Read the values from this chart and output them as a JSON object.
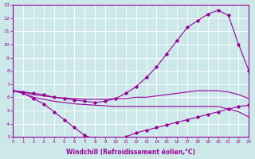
{
  "xlabel": "Windchill (Refroidissement éolien,°C)",
  "bg_color": "#cce8e8",
  "line_color": "#990099",
  "grid_color": "#ffffff",
  "xmin": 0,
  "xmax": 23,
  "ymin": 3,
  "ymax": 13,
  "curve_dip": {
    "x": [
      0,
      1,
      2,
      3,
      4,
      5,
      6,
      7,
      8,
      9,
      10,
      11,
      12,
      13,
      14,
      15,
      16,
      17,
      18,
      19,
      20,
      21,
      22,
      23
    ],
    "y": [
      6.5,
      6.3,
      5.9,
      5.5,
      4.9,
      4.3,
      3.7,
      3.1,
      2.85,
      2.75,
      2.75,
      3.0,
      3.3,
      3.5,
      3.7,
      3.9,
      4.1,
      4.3,
      4.5,
      4.7,
      4.9,
      5.1,
      5.3,
      5.4
    ],
    "marker": true
  },
  "curve_rise": {
    "x": [
      0,
      1,
      2,
      3,
      4,
      5,
      6,
      7,
      8,
      9,
      10,
      11,
      12,
      13,
      14,
      15,
      16,
      17,
      18,
      19,
      20,
      21,
      22,
      23
    ],
    "y": [
      6.5,
      6.4,
      6.3,
      6.2,
      6.0,
      5.9,
      5.8,
      5.7,
      5.6,
      5.7,
      5.9,
      6.3,
      6.8,
      7.5,
      8.3,
      9.3,
      10.3,
      11.3,
      11.8,
      12.3,
      12.6,
      12.2,
      10.0,
      8.0
    ],
    "marker": true
  },
  "flat_mid": {
    "x": [
      0,
      1,
      2,
      3,
      4,
      5,
      6,
      7,
      8,
      9,
      10,
      11,
      12,
      13,
      14,
      15,
      16,
      17,
      18,
      19,
      20,
      21,
      22,
      23
    ],
    "y": [
      6.5,
      6.4,
      6.2,
      6.1,
      6.0,
      5.95,
      5.9,
      5.85,
      5.85,
      5.85,
      5.9,
      5.9,
      6.0,
      6.0,
      6.1,
      6.2,
      6.3,
      6.4,
      6.5,
      6.5,
      6.5,
      6.4,
      6.2,
      5.9
    ],
    "marker": false
  },
  "flat_bot": {
    "x": [
      0,
      1,
      2,
      3,
      4,
      5,
      6,
      7,
      8,
      9,
      10,
      11,
      12,
      13,
      14,
      15,
      16,
      17,
      18,
      19,
      20,
      21,
      22,
      23
    ],
    "y": [
      6.5,
      6.3,
      6.0,
      5.85,
      5.7,
      5.6,
      5.5,
      5.45,
      5.4,
      5.35,
      5.3,
      5.3,
      5.3,
      5.3,
      5.3,
      5.3,
      5.3,
      5.3,
      5.3,
      5.3,
      5.3,
      5.1,
      4.9,
      4.5
    ],
    "marker": false
  }
}
